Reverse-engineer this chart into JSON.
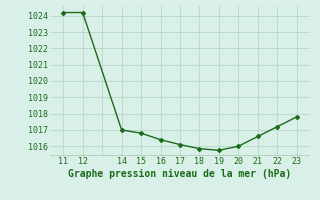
{
  "x": [
    11,
    12,
    14,
    15,
    16,
    17,
    18,
    19,
    20,
    21,
    22,
    23
  ],
  "y": [
    1024.2,
    1024.2,
    1017.0,
    1016.8,
    1016.4,
    1016.1,
    1015.85,
    1015.75,
    1016.0,
    1016.6,
    1017.2,
    1017.8
  ],
  "line_color": "#1a6b1a",
  "marker": "D",
  "marker_size": 2,
  "bg_color": "#d8f0e8",
  "grid_color": "#b8d8c8",
  "xlabel": "Graphe pression niveau de la mer (hPa)",
  "xlabel_color": "#1a6b1a",
  "xlabel_fontsize": 7,
  "tick_color": "#1a6b1a",
  "tick_fontsize": 6,
  "ylim": [
    1015.4,
    1024.6
  ],
  "yticks": [
    1016,
    1017,
    1018,
    1019,
    1020,
    1021,
    1022,
    1023,
    1024
  ],
  "xticks": [
    11,
    12,
    14,
    15,
    16,
    17,
    18,
    19,
    20,
    21,
    22,
    23
  ],
  "xlim": [
    10.3,
    23.7
  ]
}
